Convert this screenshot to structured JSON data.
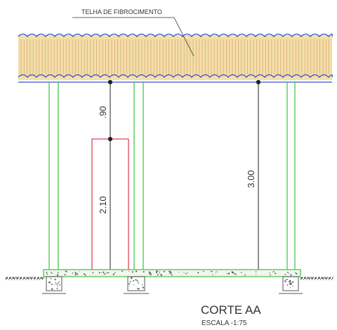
{
  "roof_label": "TELHA DE FIBROCIMENTO",
  "dimensions": {
    "upper_gap": ".90",
    "door_height": "2.10",
    "total_height": "3.00"
  },
  "section": {
    "title": "CORTE  AA",
    "scale": "ESCALA  -1:75"
  },
  "colors": {
    "roof_wave": "#3a4fd0",
    "roof_fill": "#f3dfa8",
    "roof_ribs": "#d9a070",
    "columns": "#46c94a",
    "door": "#e0445a",
    "dimension_line": "#222222",
    "slab": "#46c94a"
  }
}
